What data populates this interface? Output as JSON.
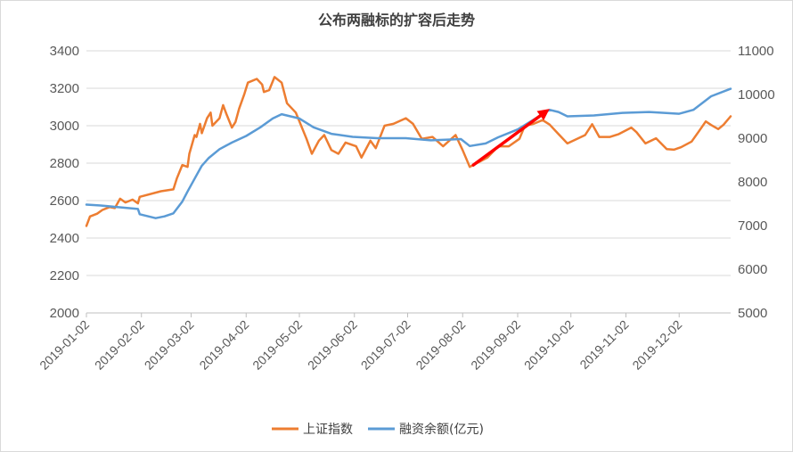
{
  "chart_data": {
    "type": "line",
    "title": "公布两融标的扩容后走势",
    "x_ticks": [
      "2019-01-02",
      "2019-02-02",
      "2019-03-02",
      "2019-04-02",
      "2019-05-02",
      "2019-06-02",
      "2019-07-02",
      "2019-08-02",
      "2019-09-02",
      "2019-10-02",
      "2019-11-02",
      "2019-12-02"
    ],
    "x_range": [
      "2019-01-02",
      "2019-12-31"
    ],
    "y_left": {
      "ticks": [
        "2000",
        "2200",
        "2400",
        "2600",
        "2800",
        "3000",
        "3200",
        "3400"
      ],
      "lim": [
        2000,
        3400
      ]
    },
    "y_right": {
      "ticks": [
        "5000",
        "6000",
        "7000",
        "8000",
        "9000",
        "10000",
        "11000"
      ],
      "lim": [
        5000,
        11000
      ]
    },
    "grid": true,
    "legend_position": "bottom",
    "colors": {
      "sse": "#ED7D31",
      "margin": "#5B9BD5",
      "arrow": "#FF0000",
      "grid": "#d9d9d9"
    },
    "series": [
      {
        "name": "上证指数",
        "axis": "left",
        "points": [
          [
            "2019-01-02",
            2465
          ],
          [
            "2019-01-04",
            2515
          ],
          [
            "2019-01-08",
            2530
          ],
          [
            "2019-01-11",
            2550
          ],
          [
            "2019-01-15",
            2565
          ],
          [
            "2019-01-18",
            2560
          ],
          [
            "2019-01-21",
            2610
          ],
          [
            "2019-01-24",
            2590
          ],
          [
            "2019-01-28",
            2605
          ],
          [
            "2019-01-31",
            2585
          ],
          [
            "2019-02-01",
            2620
          ],
          [
            "2019-02-13",
            2650
          ],
          [
            "2019-02-20",
            2660
          ],
          [
            "2019-02-22",
            2720
          ],
          [
            "2019-02-25",
            2790
          ],
          [
            "2019-02-28",
            2780
          ],
          [
            "2019-03-01",
            2850
          ],
          [
            "2019-03-04",
            2950
          ],
          [
            "2019-03-05",
            2940
          ],
          [
            "2019-03-07",
            3010
          ],
          [
            "2019-03-08",
            2960
          ],
          [
            "2019-03-11",
            3040
          ],
          [
            "2019-03-13",
            3070
          ],
          [
            "2019-03-14",
            3000
          ],
          [
            "2019-03-18",
            3040
          ],
          [
            "2019-03-20",
            3110
          ],
          [
            "2019-03-22",
            3060
          ],
          [
            "2019-03-25",
            2990
          ],
          [
            "2019-03-27",
            3020
          ],
          [
            "2019-03-29",
            3090
          ],
          [
            "2019-04-01",
            3170
          ],
          [
            "2019-04-03",
            3230
          ],
          [
            "2019-04-08",
            3250
          ],
          [
            "2019-04-11",
            3220
          ],
          [
            "2019-04-12",
            3180
          ],
          [
            "2019-04-15",
            3190
          ],
          [
            "2019-04-18",
            3260
          ],
          [
            "2019-04-22",
            3230
          ],
          [
            "2019-04-25",
            3120
          ],
          [
            "2019-04-30",
            3070
          ],
          [
            "2019-05-06",
            2930
          ],
          [
            "2019-05-09",
            2850
          ],
          [
            "2019-05-13",
            2920
          ],
          [
            "2019-05-16",
            2950
          ],
          [
            "2019-05-20",
            2870
          ],
          [
            "2019-05-24",
            2850
          ],
          [
            "2019-05-28",
            2910
          ],
          [
            "2019-06-03",
            2890
          ],
          [
            "2019-06-06",
            2830
          ],
          [
            "2019-06-11",
            2920
          ],
          [
            "2019-06-14",
            2880
          ],
          [
            "2019-06-19",
            3000
          ],
          [
            "2019-06-24",
            3010
          ],
          [
            "2019-07-01",
            3040
          ],
          [
            "2019-07-05",
            3010
          ],
          [
            "2019-07-10",
            2930
          ],
          [
            "2019-07-16",
            2940
          ],
          [
            "2019-07-22",
            2890
          ],
          [
            "2019-07-29",
            2950
          ],
          [
            "2019-08-02",
            2870
          ],
          [
            "2019-08-06",
            2780
          ],
          [
            "2019-08-12",
            2810
          ],
          [
            "2019-08-16",
            2830
          ],
          [
            "2019-08-22",
            2890
          ],
          [
            "2019-08-28",
            2890
          ],
          [
            "2019-09-03",
            2930
          ],
          [
            "2019-09-06",
            3000
          ],
          [
            "2019-09-11",
            3010
          ],
          [
            "2019-09-16",
            3030
          ],
          [
            "2019-09-20",
            3006
          ],
          [
            "2019-09-25",
            2955
          ],
          [
            "2019-09-30",
            2905
          ],
          [
            "2019-10-10",
            2950
          ],
          [
            "2019-10-14",
            3008
          ],
          [
            "2019-10-18",
            2940
          ],
          [
            "2019-10-24",
            2940
          ],
          [
            "2019-10-29",
            2955
          ],
          [
            "2019-11-05",
            2990
          ],
          [
            "2019-11-08",
            2965
          ],
          [
            "2019-11-13",
            2905
          ],
          [
            "2019-11-19",
            2933
          ],
          [
            "2019-11-25",
            2875
          ],
          [
            "2019-11-29",
            2872
          ],
          [
            "2019-12-03",
            2885
          ],
          [
            "2019-12-09",
            2915
          ],
          [
            "2019-12-13",
            2968
          ],
          [
            "2019-12-17",
            3023
          ],
          [
            "2019-12-20",
            3004
          ],
          [
            "2019-12-24",
            2982
          ],
          [
            "2019-12-27",
            3005
          ],
          [
            "2019-12-31",
            3050
          ]
        ]
      },
      {
        "name": "融资余额(亿元)",
        "axis": "right",
        "points": [
          [
            "2019-01-02",
            7480
          ],
          [
            "2019-01-10",
            7460
          ],
          [
            "2019-01-20",
            7420
          ],
          [
            "2019-01-31",
            7380
          ],
          [
            "2019-02-01",
            7260
          ],
          [
            "2019-02-10",
            7170
          ],
          [
            "2019-02-15",
            7210
          ],
          [
            "2019-02-20",
            7280
          ],
          [
            "2019-02-25",
            7550
          ],
          [
            "2019-02-28",
            7780
          ],
          [
            "2019-03-05",
            8150
          ],
          [
            "2019-03-08",
            8370
          ],
          [
            "2019-03-12",
            8550
          ],
          [
            "2019-03-18",
            8750
          ],
          [
            "2019-03-25",
            8900
          ],
          [
            "2019-04-02",
            9050
          ],
          [
            "2019-04-10",
            9250
          ],
          [
            "2019-04-17",
            9450
          ],
          [
            "2019-04-22",
            9550
          ],
          [
            "2019-05-02",
            9450
          ],
          [
            "2019-05-10",
            9250
          ],
          [
            "2019-05-20",
            9100
          ],
          [
            "2019-06-01",
            9030
          ],
          [
            "2019-06-15",
            9000
          ],
          [
            "2019-07-01",
            9000
          ],
          [
            "2019-07-15",
            8950
          ],
          [
            "2019-08-01",
            8980
          ],
          [
            "2019-08-06",
            8820
          ],
          [
            "2019-08-15",
            8880
          ],
          [
            "2019-08-22",
            9020
          ],
          [
            "2019-09-02",
            9200
          ],
          [
            "2019-09-10",
            9400
          ],
          [
            "2019-09-20",
            9650
          ],
          [
            "2019-09-25",
            9600
          ],
          [
            "2019-09-30",
            9500
          ],
          [
            "2019-10-15",
            9520
          ],
          [
            "2019-10-31",
            9580
          ],
          [
            "2019-11-15",
            9600
          ],
          [
            "2019-12-02",
            9560
          ],
          [
            "2019-12-10",
            9650
          ],
          [
            "2019-12-20",
            9960
          ],
          [
            "2019-12-31",
            10130
          ]
        ]
      }
    ],
    "annotation": {
      "type": "arrow",
      "from": [
        "2019-08-08",
        2790
      ],
      "to": [
        "2019-09-20",
        3090
      ]
    }
  },
  "legend": [
    {
      "label": "上证指数",
      "color": "#ED7D31"
    },
    {
      "label": "融资余额(亿元)",
      "color": "#5B9BD5"
    }
  ]
}
